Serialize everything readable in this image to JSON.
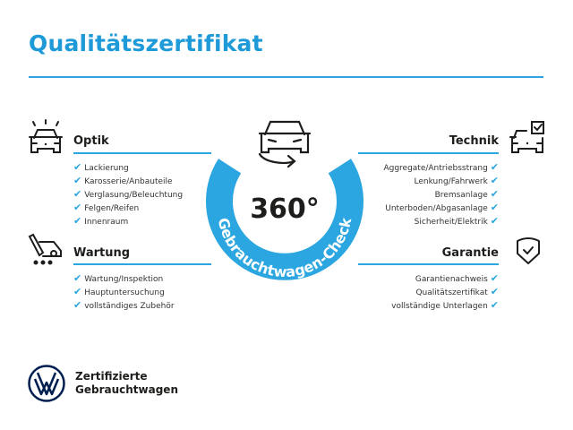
{
  "title": "Qualitätszertifikat",
  "colors": {
    "accent": "#2ba6e0",
    "title": "#1f9ad8",
    "text": "#1d1d1b"
  },
  "center": {
    "value": "360°",
    "ring_text": "Gebrauchtwagen-Check",
    "icon": "car-rotate-icon"
  },
  "sections": {
    "optik": {
      "label": "Optik",
      "icon": "car-lights-icon",
      "items": [
        "Lackierung",
        "Karosserie/Anbauteile",
        "Verglasung/Beleuchtung",
        "Felgen/Reifen",
        "Innenraum"
      ]
    },
    "wartung": {
      "label": "Wartung",
      "icon": "service-tool-icon",
      "items": [
        "Wartung/Inspektion",
        "Hauptuntersuchung",
        "vollständiges Zubehör"
      ]
    },
    "technik": {
      "label": "Technik",
      "icon": "car-checkbox-icon",
      "items": [
        "Aggregate/Antriebsstrang",
        "Lenkung/Fahrwerk",
        "Bremsanlage",
        "Unterboden/Abgasanlage",
        "Sicherheit/Elektrik"
      ]
    },
    "garantie": {
      "label": "Garantie",
      "icon": "shield-check-icon",
      "items": [
        "Garantienachweis",
        "Qualitätszertifikat",
        "vollständige Unterlagen"
      ]
    }
  },
  "check_mark": "✔",
  "footer": {
    "line1": "Zertifizierte",
    "line2": "Gebrauchtwagen",
    "logo": "vw-logo"
  }
}
